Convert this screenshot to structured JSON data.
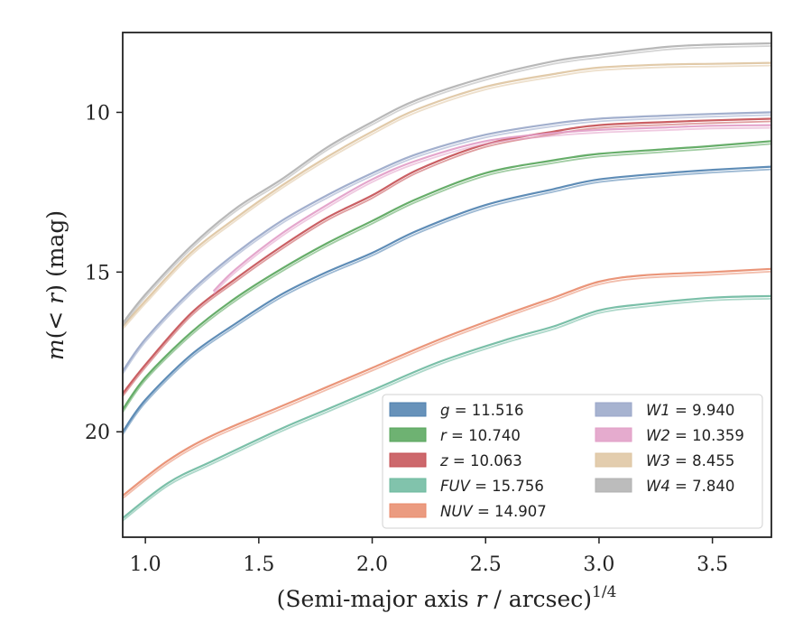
{
  "chart_data": {
    "type": "line",
    "title": "",
    "xlabel": "(Semi-major axis r / arcsec)^{1/4}",
    "ylabel": "m(< r) (mag)",
    "xlim": [
      0.9,
      3.76
    ],
    "ylim": [
      23.3,
      7.5
    ],
    "y_inverted": true,
    "xticks": [
      "1.0",
      "1.5",
      "2.0",
      "2.5",
      "3.0",
      "3.5"
    ],
    "xtick_values": [
      1.0,
      1.5,
      2.0,
      2.5,
      3.0,
      3.5
    ],
    "yticks": [
      "10",
      "15",
      "20"
    ],
    "ytick_values": [
      10,
      15,
      20
    ],
    "grid": false,
    "legend_location": "lower-right",
    "legend_columns": 2,
    "series": [
      {
        "name": "g = 11.516",
        "color": "#4c7fae",
        "x": [
          0.9,
          1.0,
          1.2,
          1.4,
          1.6,
          1.8,
          2.0,
          2.2,
          2.5,
          2.8,
          3.0,
          3.3,
          3.5,
          3.76
        ],
        "y": [
          20.0,
          19.0,
          17.6,
          16.6,
          15.7,
          15.0,
          14.4,
          13.7,
          12.9,
          12.4,
          12.1,
          11.9,
          11.8,
          11.7
        ]
      },
      {
        "name": "r = 10.740",
        "color": "#55a459",
        "x": [
          0.9,
          1.0,
          1.2,
          1.4,
          1.6,
          1.8,
          2.0,
          2.2,
          2.5,
          2.8,
          3.0,
          3.3,
          3.5,
          3.76
        ],
        "y": [
          19.3,
          18.3,
          16.9,
          15.8,
          14.9,
          14.1,
          13.4,
          12.7,
          11.9,
          11.5,
          11.3,
          11.15,
          11.05,
          10.9
        ]
      },
      {
        "name": "z = 10.063",
        "color": "#c44e52",
        "x": [
          0.9,
          1.0,
          1.2,
          1.4,
          1.6,
          1.8,
          2.0,
          2.2,
          2.5,
          2.8,
          3.0,
          3.3,
          3.5,
          3.76
        ],
        "y": [
          18.8,
          17.9,
          16.3,
          15.2,
          14.2,
          13.3,
          12.6,
          11.8,
          11.0,
          10.6,
          10.4,
          10.3,
          10.25,
          10.2
        ]
      },
      {
        "name": "FUV = 15.756",
        "color": "#6bb89e",
        "x": [
          0.9,
          1.1,
          1.3,
          1.6,
          1.8,
          2.0,
          2.3,
          2.6,
          2.8,
          3.0,
          3.2,
          3.5,
          3.76
        ],
        "y": [
          22.7,
          21.6,
          20.9,
          19.9,
          19.3,
          18.7,
          17.8,
          17.1,
          16.7,
          16.2,
          16.0,
          15.8,
          15.75
        ]
      },
      {
        "name": "NUV = 14.907",
        "color": "#e8896a",
        "x": [
          0.9,
          1.1,
          1.3,
          1.6,
          1.8,
          2.0,
          2.3,
          2.6,
          2.8,
          3.0,
          3.2,
          3.5,
          3.76
        ],
        "y": [
          22.0,
          20.9,
          20.1,
          19.2,
          18.6,
          18.0,
          17.1,
          16.3,
          15.8,
          15.3,
          15.1,
          15.0,
          14.9
        ]
      },
      {
        "name": "W1 = 9.940",
        "color": "#98a6c8",
        "x": [
          0.9,
          1.0,
          1.2,
          1.4,
          1.6,
          1.8,
          2.0,
          2.2,
          2.5,
          2.8,
          3.0,
          3.3,
          3.5,
          3.76
        ],
        "y": [
          18.1,
          17.1,
          15.6,
          14.4,
          13.4,
          12.6,
          11.9,
          11.3,
          10.7,
          10.35,
          10.2,
          10.1,
          10.05,
          10.0
        ]
      },
      {
        "name": "W2 = 10.359",
        "color": "#e19cc6",
        "x": [
          1.3,
          1.4,
          1.6,
          1.8,
          2.0,
          2.2,
          2.5,
          2.8,
          3.0,
          3.3,
          3.5,
          3.76
        ],
        "y": [
          15.6,
          14.9,
          13.8,
          12.9,
          12.1,
          11.5,
          10.9,
          10.65,
          10.55,
          10.47,
          10.42,
          10.4
        ]
      },
      {
        "name": "W3 = 8.455",
        "color": "#dec4a0",
        "x": [
          0.9,
          1.0,
          1.2,
          1.4,
          1.6,
          1.8,
          2.0,
          2.2,
          2.5,
          2.8,
          3.0,
          3.3,
          3.5,
          3.76
        ],
        "y": [
          16.7,
          15.9,
          14.4,
          13.3,
          12.3,
          11.4,
          10.6,
          9.9,
          9.2,
          8.8,
          8.6,
          8.5,
          8.48,
          8.45
        ]
      },
      {
        "name": "W4 = 7.840",
        "color": "#b0b0b0",
        "x": [
          0.9,
          1.0,
          1.2,
          1.4,
          1.6,
          1.8,
          2.0,
          2.2,
          2.5,
          2.8,
          3.0,
          3.3,
          3.5,
          3.76
        ],
        "y": [
          16.6,
          15.7,
          14.2,
          13.0,
          12.1,
          11.1,
          10.3,
          9.6,
          8.9,
          8.4,
          8.2,
          7.95,
          7.88,
          7.84
        ]
      }
    ]
  }
}
